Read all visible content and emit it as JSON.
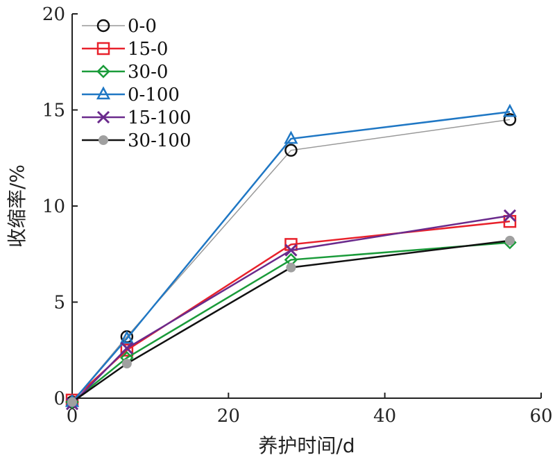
{
  "chart_data": {
    "type": "line",
    "xlabel": "养护时间/d",
    "ylabel": "收缩率/%",
    "xlim": [
      0,
      60
    ],
    "ylim": [
      0,
      20
    ],
    "xticks": [
      "0",
      "20",
      "40",
      "60"
    ],
    "yticks": [
      "0",
      "5",
      "10",
      "15",
      "20"
    ],
    "grid": false,
    "legend_position": "top-left",
    "x": [
      0,
      7,
      28,
      56
    ],
    "series": [
      {
        "name": "0-0",
        "color": "#999999",
        "marker": "circle",
        "values": [
          -0.2,
          3.2,
          12.9,
          14.5
        ]
      },
      {
        "name": "15-0",
        "color": "#e8212b",
        "marker": "square",
        "values": [
          -0.1,
          2.5,
          8.0,
          9.2
        ]
      },
      {
        "name": "30-0",
        "color": "#1a9b3a",
        "marker": "diamond",
        "values": [
          -0.2,
          2.1,
          7.2,
          8.1
        ]
      },
      {
        "name": "0-100",
        "color": "#1f77c4",
        "marker": "triangle",
        "values": [
          -0.2,
          3.1,
          13.5,
          14.9
        ]
      },
      {
        "name": "15-100",
        "color": "#6a2a8c",
        "marker": "x",
        "values": [
          -0.3,
          2.6,
          7.7,
          9.5
        ]
      },
      {
        "name": "30-100",
        "color": "#111111",
        "marker": "dot",
        "values": [
          -0.2,
          1.8,
          6.8,
          8.2
        ]
      }
    ]
  }
}
